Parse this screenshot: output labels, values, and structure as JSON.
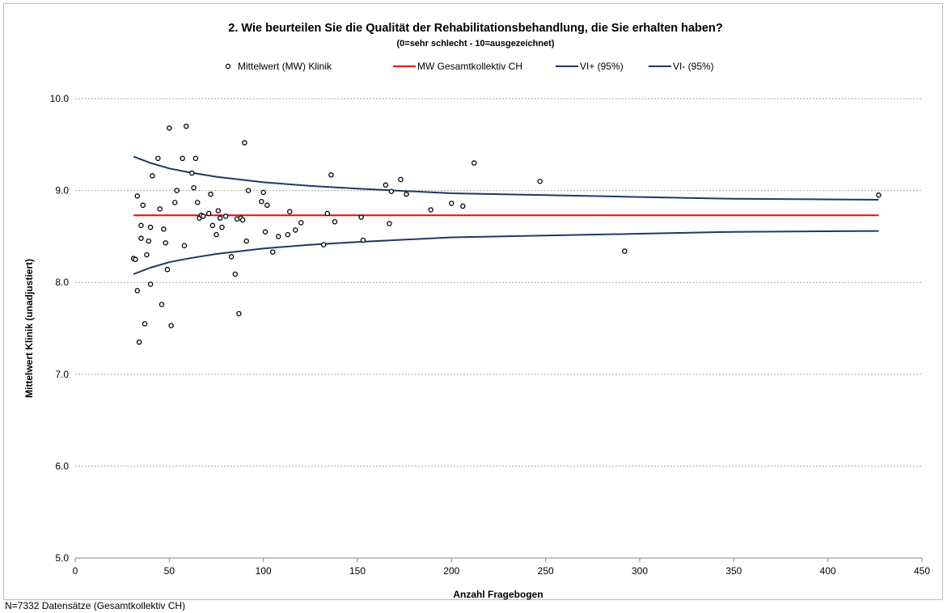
{
  "chart_data": {
    "type": "scatter",
    "title": "2. Wie beurteilen Sie die Qualität der Rehabilitationsbehandlung,  die Sie erhalten haben?",
    "subtitle": "(0=sehr schlecht - 10=ausgezeichnet)",
    "xlabel": "Anzahl Fragebogen",
    "ylabel": "Mittelwert Klinik (unadjustiert)",
    "xlim": [
      0,
      450
    ],
    "ylim": [
      5.0,
      10.0
    ],
    "x_ticks": [
      "0",
      "50",
      "100",
      "150",
      "200",
      "250",
      "300",
      "350",
      "400",
      "450"
    ],
    "y_ticks": [
      "5.0",
      "6.0",
      "7.0",
      "8.0",
      "9.0",
      "10.0"
    ],
    "grid": "horizontal dotted",
    "legend_position": "top",
    "legend": [
      {
        "label": "Mittelwert (MW) Klinik",
        "marker": "circle",
        "color": "#000000"
      },
      {
        "label": "MW Gesamtkollektiv CH",
        "marker": "line",
        "color": "#ff0000"
      },
      {
        "label": "VI+ (95%)",
        "marker": "line",
        "color": "#1f3864"
      },
      {
        "label": "VI- (95%)",
        "marker": "line",
        "color": "#1f3864"
      }
    ],
    "overall_mean": 8.73,
    "confidence_upper": {
      "x": [
        31,
        40,
        50,
        60,
        75,
        100,
        125,
        150,
        200,
        250,
        300,
        350,
        427
      ],
      "y": [
        9.37,
        9.3,
        9.24,
        9.2,
        9.15,
        9.09,
        9.05,
        9.02,
        8.97,
        8.95,
        8.93,
        8.91,
        8.9
      ]
    },
    "confidence_lower": {
      "x": [
        31,
        40,
        50,
        60,
        75,
        100,
        125,
        150,
        200,
        250,
        300,
        350,
        427
      ],
      "y": [
        8.09,
        8.16,
        8.22,
        8.26,
        8.31,
        8.37,
        8.41,
        8.44,
        8.49,
        8.51,
        8.53,
        8.55,
        8.56
      ]
    },
    "series": [
      {
        "name": "Mittelwert (MW) Klinik",
        "x": [
          31,
          32,
          33,
          33,
          34,
          35,
          35,
          36,
          37,
          38,
          39,
          40,
          40,
          41,
          44,
          45,
          46,
          47,
          48,
          49,
          50,
          51,
          53,
          54,
          57,
          58,
          59,
          62,
          63,
          64,
          65,
          66,
          67,
          68,
          71,
          72,
          73,
          75,
          76,
          77,
          78,
          80,
          83,
          85,
          86,
          87,
          88,
          89,
          90,
          91,
          92,
          99,
          100,
          101,
          102,
          105,
          108,
          113,
          114,
          117,
          120,
          132,
          134,
          136,
          138,
          153,
          152,
          165,
          167,
          168,
          173,
          176,
          189,
          200,
          206,
          212,
          247,
          292,
          427
        ],
        "y": [
          8.26,
          8.25,
          8.94,
          7.91,
          7.35,
          8.62,
          8.48,
          8.84,
          7.55,
          8.3,
          8.45,
          8.6,
          7.98,
          9.16,
          9.35,
          8.8,
          7.76,
          8.58,
          8.43,
          8.14,
          9.68,
          7.53,
          8.87,
          9.0,
          9.35,
          8.4,
          9.7,
          9.19,
          9.03,
          9.35,
          8.87,
          8.7,
          8.73,
          8.72,
          8.75,
          8.96,
          8.62,
          8.52,
          8.78,
          8.7,
          8.6,
          8.72,
          8.28,
          8.09,
          8.69,
          7.66,
          8.7,
          8.68,
          9.52,
          8.45,
          9.0,
          8.88,
          8.98,
          8.55,
          8.84,
          8.33,
          8.5,
          8.52,
          8.77,
          8.57,
          8.65,
          8.41,
          8.75,
          9.17,
          8.66,
          8.46,
          8.71,
          9.06,
          8.64,
          8.99,
          9.12,
          8.96,
          8.79,
          8.86,
          8.83,
          9.3,
          9.1,
          8.34,
          8.95
        ]
      }
    ],
    "footnote": "N=7332 Datensätze (Gesamtkollektiv CH)"
  }
}
